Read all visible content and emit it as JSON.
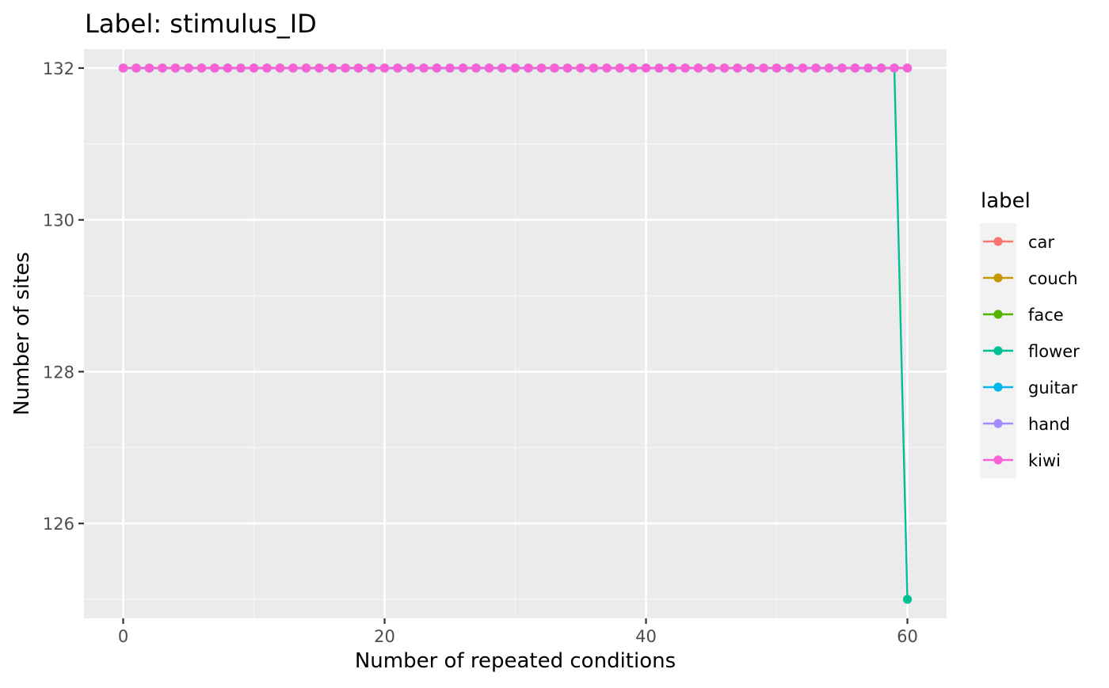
{
  "colors": {
    "panel_background": "#EBEBEB",
    "grid_major": "#FFFFFF",
    "grid_minor": "#F5F5F5",
    "tick_text": "#4D4D4D",
    "title_text": "#000000"
  },
  "chart_data": {
    "type": "line",
    "title": "Label: stimulus_ID",
    "xlabel": "Number of repeated conditions",
    "ylabel": "Number of sites",
    "xlim": [
      -3,
      63
    ],
    "ylim": [
      124.75,
      132.25
    ],
    "x_ticks": [
      0,
      20,
      40,
      60
    ],
    "x_tick_labels": [
      "0",
      "20",
      "40",
      "60"
    ],
    "y_ticks": [
      126,
      128,
      130,
      132
    ],
    "y_tick_labels": [
      "126",
      "128",
      "130",
      "132"
    ],
    "grid": true,
    "markers": true,
    "legend_title": "label",
    "legend_position": "right",
    "x": [
      0,
      1,
      2,
      3,
      4,
      5,
      6,
      7,
      8,
      9,
      10,
      11,
      12,
      13,
      14,
      15,
      16,
      17,
      18,
      19,
      20,
      21,
      22,
      23,
      24,
      25,
      26,
      27,
      28,
      29,
      30,
      31,
      32,
      33,
      34,
      35,
      36,
      37,
      38,
      39,
      40,
      41,
      42,
      43,
      44,
      45,
      46,
      47,
      48,
      49,
      50,
      51,
      52,
      53,
      54,
      55,
      56,
      57,
      58,
      59,
      60
    ],
    "series": [
      {
        "name": "car",
        "color": "#F8766D",
        "values": [
          132,
          132,
          132,
          132,
          132,
          132,
          132,
          132,
          132,
          132,
          132,
          132,
          132,
          132,
          132,
          132,
          132,
          132,
          132,
          132,
          132,
          132,
          132,
          132,
          132,
          132,
          132,
          132,
          132,
          132,
          132,
          132,
          132,
          132,
          132,
          132,
          132,
          132,
          132,
          132,
          132,
          132,
          132,
          132,
          132,
          132,
          132,
          132,
          132,
          132,
          132,
          132,
          132,
          132,
          132,
          132,
          132,
          132,
          132,
          132,
          132
        ]
      },
      {
        "name": "couch",
        "color": "#C49A00",
        "values": [
          132,
          132,
          132,
          132,
          132,
          132,
          132,
          132,
          132,
          132,
          132,
          132,
          132,
          132,
          132,
          132,
          132,
          132,
          132,
          132,
          132,
          132,
          132,
          132,
          132,
          132,
          132,
          132,
          132,
          132,
          132,
          132,
          132,
          132,
          132,
          132,
          132,
          132,
          132,
          132,
          132,
          132,
          132,
          132,
          132,
          132,
          132,
          132,
          132,
          132,
          132,
          132,
          132,
          132,
          132,
          132,
          132,
          132,
          132,
          132,
          132
        ]
      },
      {
        "name": "face",
        "color": "#53B400",
        "values": [
          132,
          132,
          132,
          132,
          132,
          132,
          132,
          132,
          132,
          132,
          132,
          132,
          132,
          132,
          132,
          132,
          132,
          132,
          132,
          132,
          132,
          132,
          132,
          132,
          132,
          132,
          132,
          132,
          132,
          132,
          132,
          132,
          132,
          132,
          132,
          132,
          132,
          132,
          132,
          132,
          132,
          132,
          132,
          132,
          132,
          132,
          132,
          132,
          132,
          132,
          132,
          132,
          132,
          132,
          132,
          132,
          132,
          132,
          132,
          132,
          132
        ]
      },
      {
        "name": "flower",
        "color": "#00C094",
        "values": [
          132,
          132,
          132,
          132,
          132,
          132,
          132,
          132,
          132,
          132,
          132,
          132,
          132,
          132,
          132,
          132,
          132,
          132,
          132,
          132,
          132,
          132,
          132,
          132,
          132,
          132,
          132,
          132,
          132,
          132,
          132,
          132,
          132,
          132,
          132,
          132,
          132,
          132,
          132,
          132,
          132,
          132,
          132,
          132,
          132,
          132,
          132,
          132,
          132,
          132,
          132,
          132,
          132,
          132,
          132,
          132,
          132,
          132,
          132,
          132,
          125
        ]
      },
      {
        "name": "guitar",
        "color": "#00B6EB",
        "values": [
          132,
          132,
          132,
          132,
          132,
          132,
          132,
          132,
          132,
          132,
          132,
          132,
          132,
          132,
          132,
          132,
          132,
          132,
          132,
          132,
          132,
          132,
          132,
          132,
          132,
          132,
          132,
          132,
          132,
          132,
          132,
          132,
          132,
          132,
          132,
          132,
          132,
          132,
          132,
          132,
          132,
          132,
          132,
          132,
          132,
          132,
          132,
          132,
          132,
          132,
          132,
          132,
          132,
          132,
          132,
          132,
          132,
          132,
          132,
          132,
          132
        ]
      },
      {
        "name": "hand",
        "color": "#A58AFF",
        "values": [
          132,
          132,
          132,
          132,
          132,
          132,
          132,
          132,
          132,
          132,
          132,
          132,
          132,
          132,
          132,
          132,
          132,
          132,
          132,
          132,
          132,
          132,
          132,
          132,
          132,
          132,
          132,
          132,
          132,
          132,
          132,
          132,
          132,
          132,
          132,
          132,
          132,
          132,
          132,
          132,
          132,
          132,
          132,
          132,
          132,
          132,
          132,
          132,
          132,
          132,
          132,
          132,
          132,
          132,
          132,
          132,
          132,
          132,
          132,
          132,
          132
        ]
      },
      {
        "name": "kiwi",
        "color": "#FB61D7",
        "values": [
          132,
          132,
          132,
          132,
          132,
          132,
          132,
          132,
          132,
          132,
          132,
          132,
          132,
          132,
          132,
          132,
          132,
          132,
          132,
          132,
          132,
          132,
          132,
          132,
          132,
          132,
          132,
          132,
          132,
          132,
          132,
          132,
          132,
          132,
          132,
          132,
          132,
          132,
          132,
          132,
          132,
          132,
          132,
          132,
          132,
          132,
          132,
          132,
          132,
          132,
          132,
          132,
          132,
          132,
          132,
          132,
          132,
          132,
          132,
          132,
          132
        ]
      }
    ]
  }
}
